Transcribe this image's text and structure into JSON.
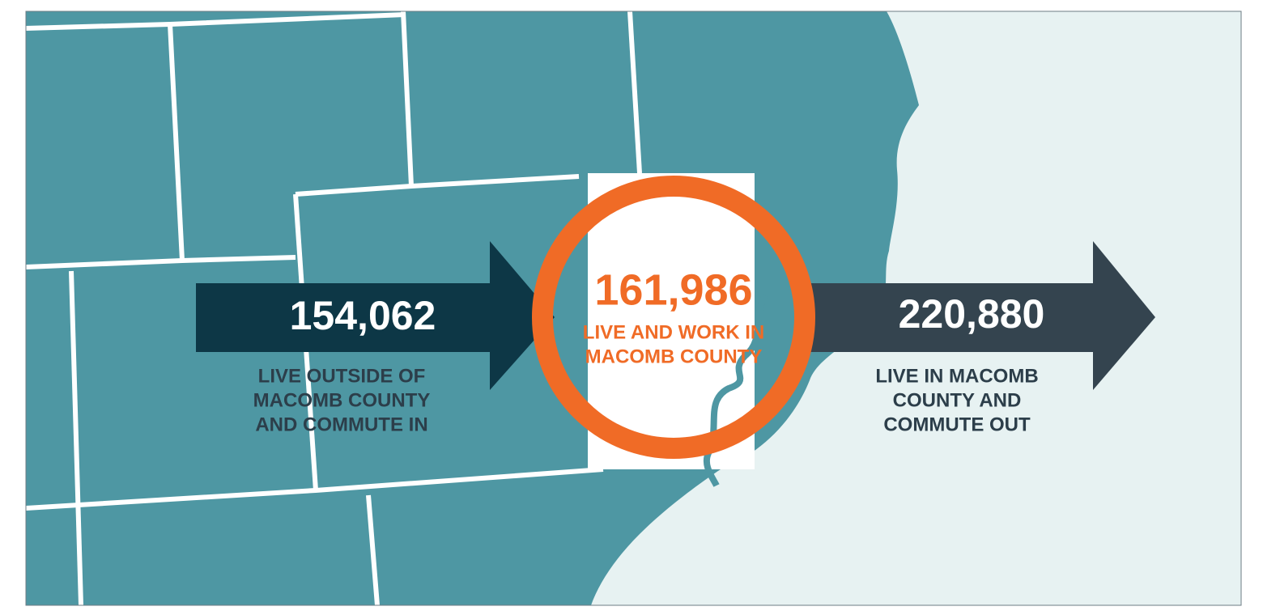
{
  "flows": [
    {
      "number": "154,062",
      "label_lines": [
        "LIVE OUTSIDE OF",
        "MACOMB COUNTY",
        "AND COMMUTE IN"
      ]
    },
    {
      "number": "161,986",
      "label_lines": [
        "LIVE AND WORK IN",
        "MACOMB COUNTY"
      ]
    },
    {
      "number": "220,880",
      "label_lines": [
        "LIVE IN MACOMB",
        "COUNTY AND",
        "COMMUTE OUT"
      ]
    }
  ]
}
